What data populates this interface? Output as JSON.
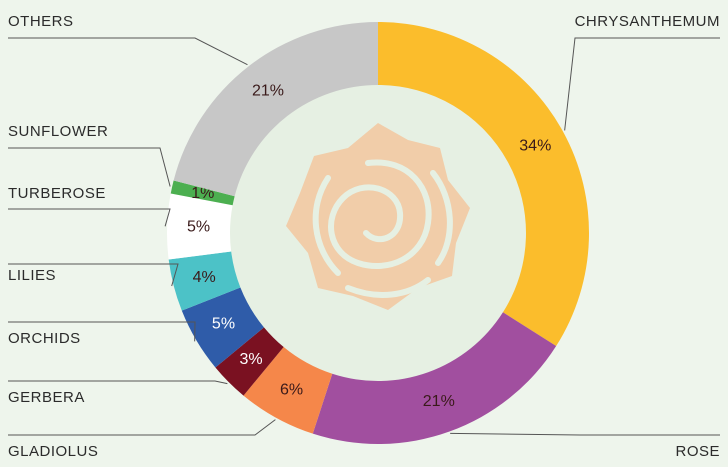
{
  "chart_data": {
    "type": "donut",
    "categories": [
      "CHRYSANTHEMUM",
      "ROSE",
      "GLADIOLUS",
      "GERBERA",
      "ORCHIDS",
      "LILIES",
      "TURBEROSE",
      "SUNFLOWER",
      "OTHERS"
    ],
    "values": [
      34,
      21,
      6,
      3,
      5,
      4,
      5,
      1,
      21
    ],
    "value_labels": [
      "34%",
      "21%",
      "6%",
      "3%",
      "5%",
      "4%",
      "5%",
      "1%",
      "21%"
    ],
    "colors": [
      "#fbbd2c",
      "#a14f9f",
      "#f5874a",
      "#7a1121",
      "#2f5ca9",
      "#4cc2c7",
      "#ffffff",
      "#4caf50",
      "#c7c7c7"
    ],
    "label_colors": [
      "#3a1a1a",
      "#3a1a1a",
      "#3a1a1a",
      "#ffffff",
      "#ffffff",
      "#3a1a1a",
      "#3a1a1a",
      "#3a1a1a",
      "#3a1a1a"
    ]
  }
}
